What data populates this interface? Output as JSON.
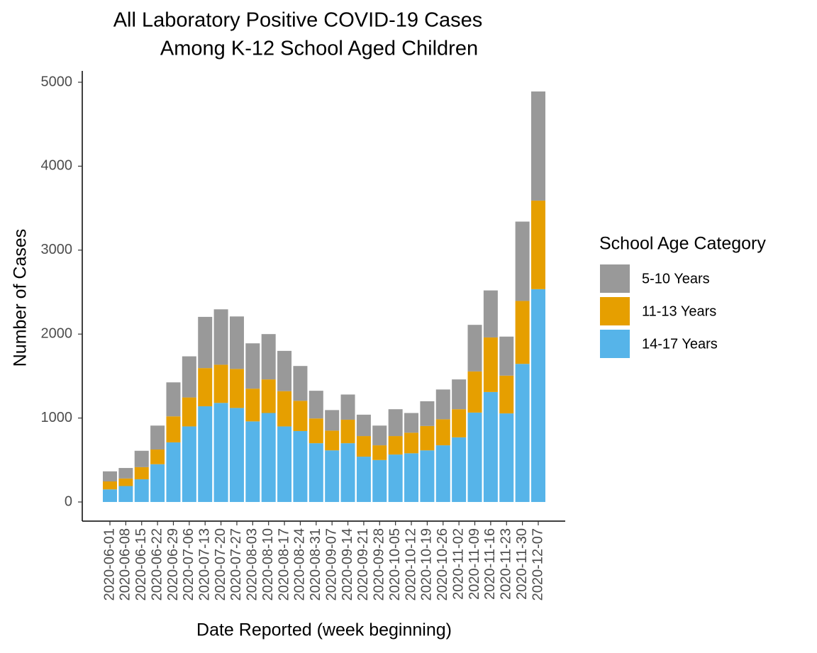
{
  "chart_data": {
    "type": "stacked_bar",
    "title": [
      "All Laboratory Positive COVID-19 Cases",
      "Among K-12 School Aged Children"
    ],
    "x_label": "Date Reported (week beginning)",
    "y_label": "Number of Cases",
    "legend_title": "School Age Category",
    "legend_position": "right",
    "categories": [
      "2020-06-01",
      "2020-06-08",
      "2020-06-15",
      "2020-06-22",
      "2020-06-29",
      "2020-07-06",
      "2020-07-13",
      "2020-07-20",
      "2020-07-27",
      "2020-08-03",
      "2020-08-10",
      "2020-08-17",
      "2020-08-24",
      "2020-08-31",
      "2020-09-07",
      "2020-09-14",
      "2020-09-21",
      "2020-09-28",
      "2020-10-05",
      "2020-10-12",
      "2020-10-19",
      "2020-10-26",
      "2020-11-02",
      "2020-11-09",
      "2020-11-16",
      "2020-11-23",
      "2020-11-30",
      "2020-12-07"
    ],
    "series": [
      {
        "name": "5-10 Years",
        "color": "#999999",
        "values": [
          120,
          125,
          195,
          285,
          405,
          490,
          610,
          660,
          625,
          540,
          540,
          480,
          415,
          330,
          245,
          300,
          255,
          235,
          320,
          235,
          295,
          355,
          355,
          555,
          560,
          465,
          945,
          1300
        ]
      },
      {
        "name": "11-13 Years",
        "color": "#E69F00",
        "values": [
          95,
          90,
          145,
          175,
          310,
          345,
          455,
          455,
          465,
          390,
          400,
          420,
          360,
          295,
          235,
          280,
          245,
          175,
          220,
          245,
          290,
          310,
          335,
          490,
          650,
          450,
          750,
          1055
        ]
      },
      {
        "name": "14-17 Years",
        "color": "#56B4E9",
        "values": [
          150,
          190,
          270,
          450,
          710,
          900,
          1140,
          1180,
          1120,
          960,
          1060,
          900,
          845,
          700,
          615,
          700,
          540,
          500,
          565,
          580,
          615,
          675,
          770,
          1065,
          1310,
          1055,
          1645,
          2535
        ]
      }
    ],
    "ylim": [
      -228,
      5135
    ],
    "yticks": [
      0,
      1000,
      2000,
      3000,
      4000,
      5000
    ],
    "grid": false
  }
}
